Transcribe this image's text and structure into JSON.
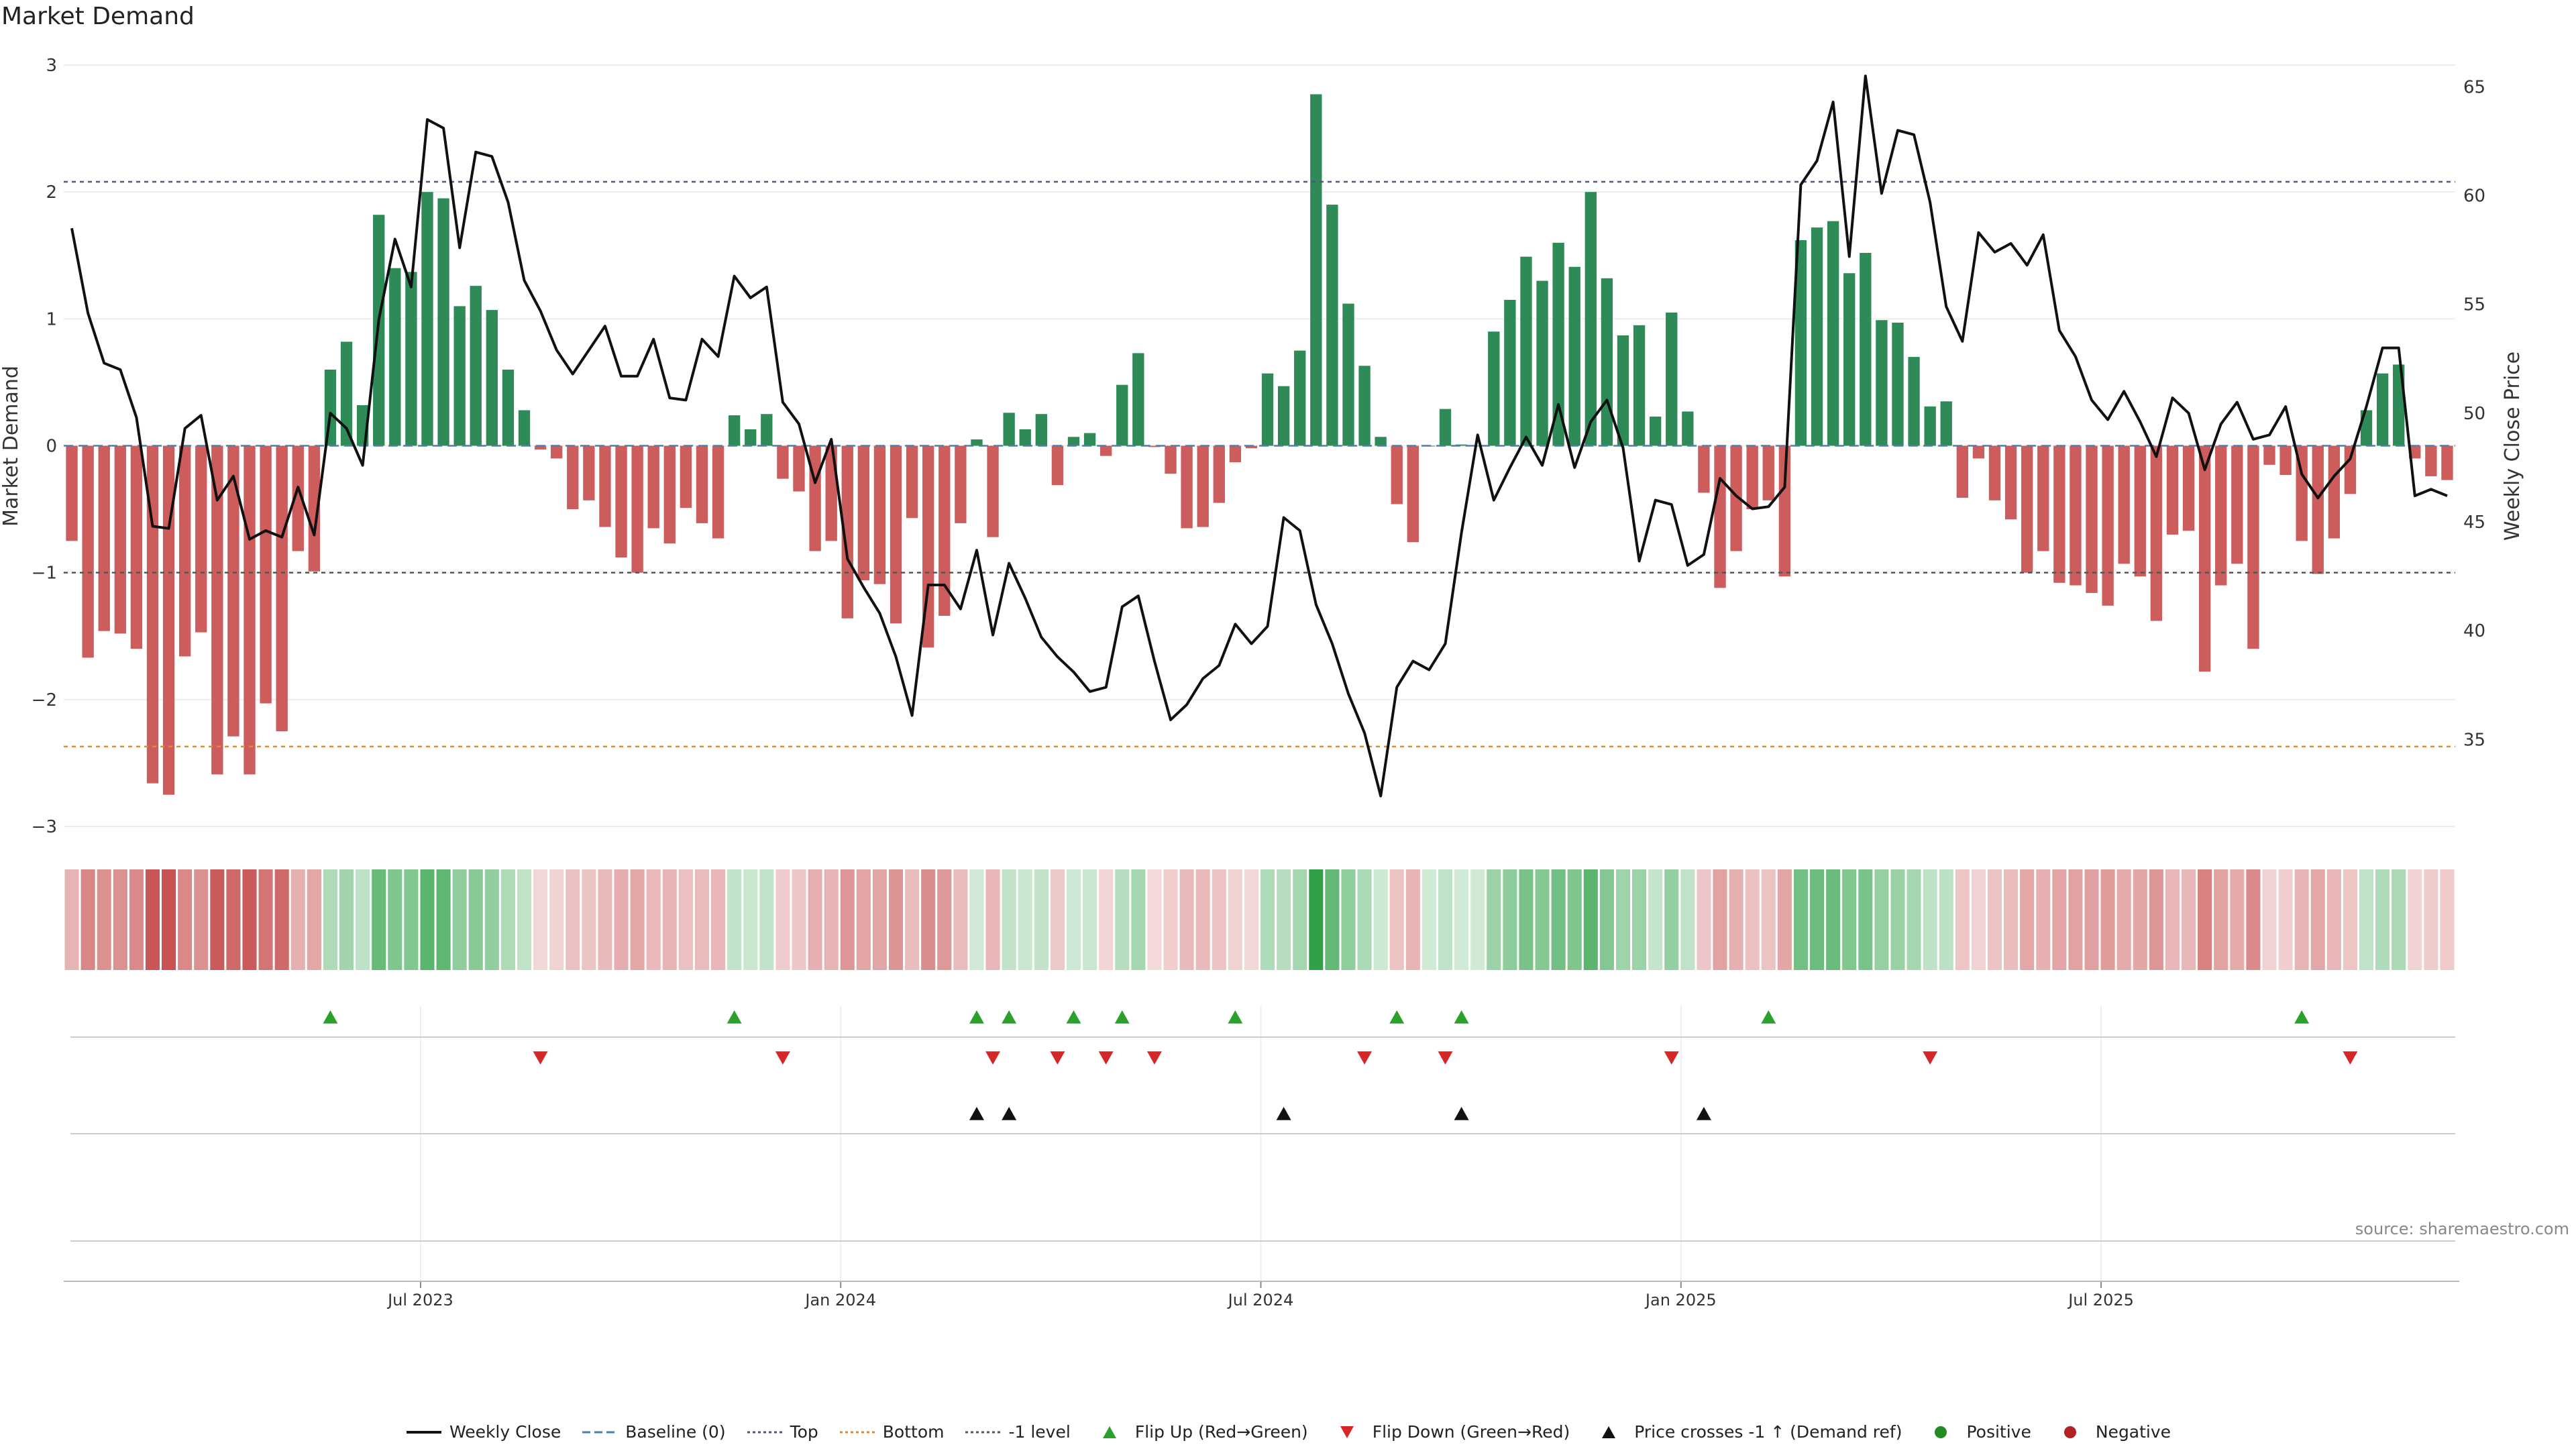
{
  "chart_data": {
    "type": "bar",
    "title": "Market Demand",
    "source_note": "source: sharemaestro.com",
    "left_axis": {
      "label": "Market Demand",
      "ylim": [
        -3,
        3
      ],
      "ticks": [
        "−3",
        "−2",
        "−1",
        "0",
        "1",
        "2",
        "3"
      ]
    },
    "right_axis": {
      "label": "Weekly Close Price",
      "ylim": [
        31,
        66
      ],
      "ticks": [
        "35",
        "40",
        "45",
        "50",
        "55",
        "60",
        "65"
      ]
    },
    "x_ticks": [
      "Jul 2023",
      "Jan 2024",
      "Jul 2024",
      "Jan 2025",
      "Jul 2025"
    ],
    "reference_lines": {
      "baseline": 0,
      "top": 2.08,
      "bottom": -2.37,
      "minus_one": -1
    },
    "demand": [
      -0.75,
      -1.67,
      -1.46,
      -1.48,
      -1.6,
      -2.66,
      -2.75,
      -1.66,
      -1.47,
      -2.59,
      -2.29,
      -2.59,
      -2.03,
      -2.25,
      -0.83,
      -0.99,
      0.6,
      0.82,
      0.32,
      1.82,
      1.4,
      1.37,
      2.0,
      1.95,
      1.1,
      1.26,
      1.07,
      0.6,
      0.28,
      -0.03,
      -0.1,
      -0.5,
      -0.43,
      -0.64,
      -0.88,
      -1.0,
      -0.65,
      -0.77,
      -0.49,
      -0.61,
      -0.73,
      0.24,
      0.13,
      0.25,
      -0.26,
      -0.36,
      -0.83,
      -0.75,
      -1.36,
      -1.06,
      -1.09,
      -1.4,
      -0.57,
      -1.59,
      -1.34,
      -0.61,
      0.05,
      -0.72,
      0.26,
      0.13,
      0.25,
      -0.31,
      0.07,
      0.1,
      -0.08,
      0.48,
      0.73,
      -0.01,
      -0.22,
      -0.65,
      -0.64,
      -0.45,
      -0.13,
      -0.02,
      0.57,
      0.47,
      0.75,
      2.77,
      1.9,
      1.12,
      0.63,
      0.07,
      -0.46,
      -0.76,
      0.0,
      0.29,
      0.01,
      0.0,
      0.9,
      1.15,
      1.49,
      1.3,
      1.6,
      1.41,
      2.0,
      1.32,
      0.87,
      0.95,
      0.23,
      1.05,
      0.27,
      -0.37,
      -1.12,
      -0.83,
      -0.5,
      -0.43,
      -1.03,
      1.62,
      1.72,
      1.77,
      1.36,
      1.52,
      0.99,
      0.97,
      0.7,
      0.31,
      0.35,
      -0.41,
      -0.1,
      -0.43,
      -0.58,
      -1.0,
      -0.83,
      -1.08,
      -1.1,
      -1.16,
      -1.26,
      -0.93,
      -1.03,
      -1.38,
      -0.7,
      -0.67,
      -1.78,
      -1.1,
      -0.93,
      -1.6,
      -0.15,
      -0.23,
      -0.75,
      -1.01,
      -0.73,
      -0.38,
      0.28,
      0.57,
      0.64,
      -0.1,
      -0.24,
      -0.27
    ],
    "weekly_close": [
      58.5,
      54.6,
      52.3,
      52.0,
      49.8,
      44.8,
      44.7,
      49.3,
      49.9,
      46.0,
      47.1,
      44.2,
      44.6,
      44.3,
      46.6,
      44.4,
      50.0,
      49.3,
      47.6,
      54.3,
      58.0,
      55.8,
      63.5,
      63.1,
      57.6,
      62.0,
      61.8,
      59.7,
      56.1,
      54.7,
      52.9,
      51.8,
      52.9,
      54.0,
      51.7,
      51.7,
      53.4,
      50.7,
      50.6,
      53.4,
      52.6,
      56.3,
      55.3,
      55.8,
      50.5,
      49.5,
      46.8,
      48.8,
      43.3,
      42.0,
      40.8,
      38.8,
      36.1,
      42.1,
      42.1,
      41.0,
      43.7,
      39.8,
      43.1,
      41.5,
      39.7,
      38.8,
      38.1,
      37.2,
      37.4,
      41.1,
      41.6,
      38.6,
      35.9,
      36.6,
      37.8,
      38.4,
      40.3,
      39.4,
      40.2,
      45.2,
      44.6,
      41.2,
      39.4,
      37.1,
      35.3,
      32.4,
      37.4,
      38.6,
      38.2,
      39.4,
      44.5,
      49.0,
      46.0,
      47.5,
      48.9,
      47.6,
      50.4,
      47.5,
      49.6,
      50.6,
      48.4,
      43.2,
      46.0,
      45.8,
      43.0,
      43.5,
      47.0,
      46.2,
      45.6,
      45.7,
      46.6,
      60.5,
      61.6,
      64.3,
      57.2,
      65.5,
      60.1,
      63.0,
      62.8,
      59.7,
      54.9,
      53.3,
      58.3,
      57.4,
      57.8,
      56.8,
      58.2,
      53.8,
      52.6,
      50.6,
      49.7,
      51.0,
      49.6,
      48.0,
      50.7,
      50.0,
      47.4,
      49.5,
      50.5,
      48.8,
      49.0,
      50.3,
      47.2,
      46.1,
      47.1,
      47.9,
      50.3,
      53.0,
      53.0,
      46.2,
      46.5,
      46.2
    ],
    "flip_up_indices": [
      16,
      41,
      56,
      58,
      62,
      65,
      72,
      82,
      86,
      105,
      138
    ],
    "flip_down_indices": [
      29,
      44,
      57,
      61,
      64,
      67,
      80,
      85,
      99,
      115,
      141
    ],
    "price_cross_indices": [
      56,
      58,
      75,
      86,
      101
    ],
    "legend": [
      {
        "label": "Weekly Close",
        "kind": "line",
        "color": "#111111"
      },
      {
        "label": "Baseline (0)",
        "kind": "dash",
        "color": "#4a7fb5"
      },
      {
        "label": "Top",
        "kind": "dot",
        "color": "#5c4d7d"
      },
      {
        "label": "Bottom",
        "kind": "dot",
        "color": "#e08a2e"
      },
      {
        "label": "-1 level",
        "kind": "dot",
        "color": "#555555"
      },
      {
        "label": "Flip Up (Red→Green)",
        "kind": "tri-up",
        "color": "#2ca02c"
      },
      {
        "label": "Flip Down (Green→Red)",
        "kind": "tri-down",
        "color": "#d62728"
      },
      {
        "label": "Price crosses -1 ↑ (Demand ref)",
        "kind": "tri-up",
        "color": "#111111"
      },
      {
        "label": "Positive",
        "kind": "dot-marker",
        "color": "#228b22"
      },
      {
        "label": "Negative",
        "kind": "dot-marker",
        "color": "#b22222"
      }
    ],
    "colors": {
      "positive": "#2e8b57",
      "negative": "#cd5c5c"
    }
  }
}
